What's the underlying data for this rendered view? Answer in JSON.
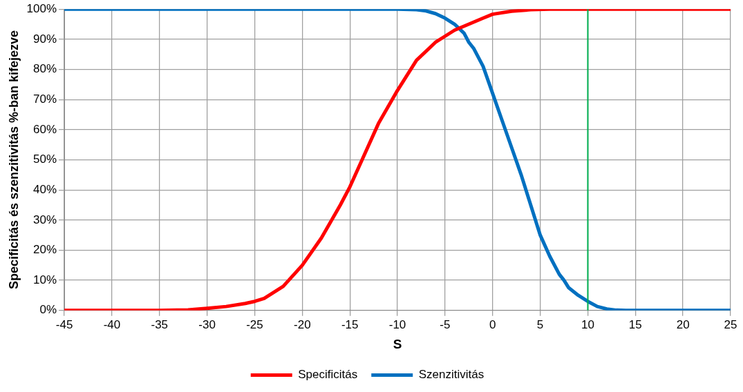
{
  "chart_data": {
    "type": "line",
    "xlabel": "S",
    "ylabel": "Specificitás és szenzitivitás %-ban kifejezve",
    "series": [
      {
        "name": "Specificitás",
        "color": "#ff0000",
        "x": [
          -45,
          -35,
          -32,
          -30,
          -28,
          -26,
          -25,
          -24,
          -22,
          -20,
          -18,
          -16,
          -15,
          -14,
          -12,
          -10,
          -8,
          -6,
          -5,
          -4,
          -2.5,
          -1,
          0,
          2,
          4,
          6,
          25
        ],
        "values": [
          0,
          0,
          0.2,
          0.7,
          1.3,
          2.3,
          3,
          4,
          8,
          15,
          24,
          35,
          41,
          48,
          62,
          73,
          83,
          89,
          91,
          93,
          95,
          97,
          98.3,
          99.3,
          99.8,
          100,
          100
        ]
      },
      {
        "name": "Szenzitivitás",
        "color": "#0070c0",
        "x": [
          -45,
          -10,
          -8,
          -7,
          -6,
          -5,
          -4,
          -3,
          -2.5,
          -2,
          -1,
          0,
          1,
          2,
          2.5,
          3,
          4,
          5,
          6,
          7,
          7.5,
          8,
          9,
          10,
          11,
          12,
          13,
          14,
          25
        ],
        "values": [
          100,
          100,
          99.8,
          99.4,
          98.5,
          97,
          95,
          92,
          89,
          87,
          81,
          72,
          63,
          54,
          49.5,
          45,
          35,
          25,
          18,
          12,
          10,
          7.5,
          5,
          3,
          1.3,
          0.5,
          0.1,
          0,
          0
        ]
      }
    ],
    "xlim": [
      -45,
      25
    ],
    "xticks": [
      -45,
      -40,
      -35,
      -30,
      -25,
      -20,
      -15,
      -10,
      -5,
      0,
      5,
      10,
      15,
      20,
      25
    ],
    "ylim": [
      0,
      100
    ],
    "yticks": [
      {
        "value": 0,
        "label": "0%"
      },
      {
        "value": 10,
        "label": "10%"
      },
      {
        "value": 20,
        "label": "20%"
      },
      {
        "value": 30,
        "label": "30%"
      },
      {
        "value": 40,
        "label": "40%"
      },
      {
        "value": 50,
        "label": "50%"
      },
      {
        "value": 60,
        "label": "60%"
      },
      {
        "value": 70,
        "label": "70%"
      },
      {
        "value": 80,
        "label": "80%"
      },
      {
        "value": 90,
        "label": "90%"
      },
      {
        "value": 100,
        "label": "100%"
      }
    ],
    "ref_lines": [
      {
        "axis": "x",
        "value": 10,
        "color": "#00b050",
        "line_style": "solid"
      }
    ],
    "grid": true,
    "legend": "bottom",
    "marker": "none",
    "line_style": "solid"
  }
}
